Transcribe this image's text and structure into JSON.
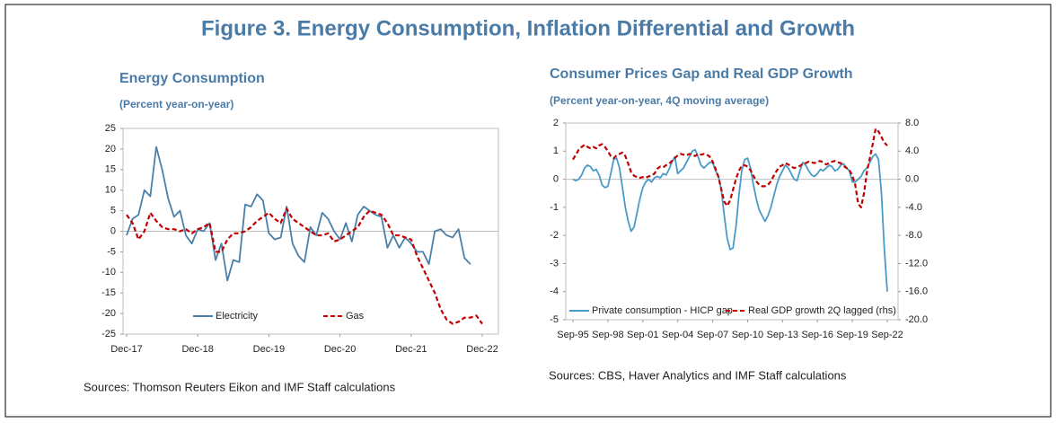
{
  "title": "Figure 3. Energy Consumption, Inflation Differential and Growth",
  "chart_data": [
    {
      "type": "line",
      "title": "Energy Consumption",
      "subtitle": "(Percent year-on-year)",
      "categories": [
        "Dec-17",
        null,
        null,
        null,
        null,
        null,
        null,
        null,
        null,
        null,
        null,
        null,
        "Dec-18",
        null,
        null,
        null,
        null,
        null,
        null,
        null,
        null,
        null,
        null,
        null,
        "Dec-19",
        null,
        null,
        null,
        null,
        null,
        null,
        null,
        null,
        null,
        null,
        null,
        "Dec-20",
        null,
        null,
        null,
        null,
        null,
        null,
        null,
        null,
        null,
        null,
        null,
        "Dec-21",
        null,
        null,
        null,
        null,
        null,
        null,
        null,
        null,
        null,
        null,
        null,
        "Dec-22"
      ],
      "series": [
        {
          "name": "Electricity",
          "color": "#4a7fa8",
          "dash": "solid",
          "values": [
            -1,
            3,
            4,
            10,
            8.5,
            20.5,
            15,
            8,
            3.5,
            5,
            -1,
            -3,
            0.5,
            0,
            2,
            -7,
            -3,
            -12,
            -7,
            -7.5,
            6.5,
            6,
            9,
            7.5,
            -0.5,
            -2,
            -1.5,
            6,
            -3,
            -6,
            -7.5,
            1,
            -1,
            4.5,
            3,
            0,
            -2,
            2,
            -2.5,
            4,
            6,
            5,
            4,
            3.5,
            -4,
            -1,
            -4,
            -1.5,
            -3,
            -5,
            -5,
            -8,
            0,
            0.5,
            -1,
            -1.5,
            0.5,
            -6.5,
            -8,
            null,
            null
          ]
        },
        {
          "name": "Gas",
          "color": "#c00000",
          "dash": "dashed",
          "values": [
            4,
            2,
            -2,
            0,
            4.5,
            2.5,
            1,
            0.5,
            0.5,
            0,
            0.5,
            -0.5,
            0.5,
            1,
            2,
            -5,
            -5,
            -2,
            -0.5,
            -0.5,
            0,
            1,
            2.5,
            3.5,
            4.5,
            3,
            2,
            5.5,
            3,
            2,
            1,
            0,
            -1,
            -1,
            -0.5,
            -2.5,
            -2,
            -1,
            0,
            1,
            3.5,
            5,
            4.5,
            4,
            2,
            -1,
            -1,
            -1.5,
            -2,
            -6,
            -9,
            -12,
            -15,
            -19,
            -21.5,
            -22.5,
            -22,
            -21,
            -21,
            -20.5,
            -22.5
          ]
        }
      ],
      "ylim": [
        -25,
        25
      ],
      "yticks": [
        25,
        20,
        15,
        10,
        5,
        0,
        -5,
        -10,
        -15,
        -20,
        -25
      ],
      "grid": false,
      "legend": "bottom",
      "source": "Sources: Thomson Reuters Eikon and IMF Staff calculations"
    },
    {
      "type": "line",
      "title": "Consumer Prices Gap and Real GDP Growth",
      "subtitle": "(Percent year-on-year, 4Q moving average)",
      "categories": [
        "Sep-95",
        null,
        null,
        null,
        null,
        null,
        null,
        null,
        null,
        null,
        null,
        null,
        "Sep-98",
        null,
        null,
        null,
        null,
        null,
        null,
        null,
        null,
        null,
        null,
        null,
        "Sep-01",
        null,
        null,
        null,
        null,
        null,
        null,
        null,
        null,
        null,
        null,
        null,
        "Sep-04",
        null,
        null,
        null,
        null,
        null,
        null,
        null,
        null,
        null,
        null,
        null,
        "Sep-07",
        null,
        null,
        null,
        null,
        null,
        null,
        null,
        null,
        null,
        null,
        null,
        "Sep-10",
        null,
        null,
        null,
        null,
        null,
        null,
        null,
        null,
        null,
        null,
        null,
        "Sep-13",
        null,
        null,
        null,
        null,
        null,
        null,
        null,
        null,
        null,
        null,
        null,
        "Sep-16",
        null,
        null,
        null,
        null,
        null,
        null,
        null,
        null,
        null,
        null,
        null,
        "Sep-19",
        null,
        null,
        null,
        null,
        null,
        null,
        null,
        null,
        null,
        null,
        null,
        "Sep-22"
      ],
      "series": [
        {
          "name": "Private consumption - HICP gap",
          "color": "#4a9bc8",
          "dash": "solid",
          "axis": "y",
          "values": [
            0,
            -0.05,
            0,
            0.15,
            0.4,
            0.5,
            0.45,
            0.3,
            0.35,
            0.15,
            -0.2,
            -0.3,
            -0.25,
            0.2,
            0.7,
            0.75,
            0.4,
            -0.3,
            -1.0,
            -1.5,
            -1.85,
            -1.7,
            -1.2,
            -0.7,
            -0.3,
            -0.1,
            0,
            -0.1,
            0.05,
            0.1,
            0.05,
            0.2,
            0.15,
            0.35,
            0.6,
            0.8,
            0.2,
            0.3,
            0.4,
            0.6,
            0.8,
            1.0,
            1.05,
            0.8,
            0.5,
            0.4,
            0.5,
            0.6,
            0.6,
            0.3,
            0.1,
            -0.4,
            -1.3,
            -2.1,
            -2.5,
            -2.45,
            -1.7,
            -0.6,
            0.3,
            0.7,
            0.75,
            0.4,
            -0.2,
            -0.7,
            -1.1,
            -1.3,
            -1.5,
            -1.3,
            -1.0,
            -0.6,
            -0.2,
            0.1,
            0.3,
            0.5,
            0.4,
            0.2,
            0.0,
            -0.05,
            0.3,
            0.6,
            0.5,
            0.3,
            0.15,
            0.1,
            0.2,
            0.35,
            0.3,
            0.4,
            0.5,
            0.45,
            0.3,
            0.35,
            0.5,
            0.55,
            0.4,
            0.3,
            -0.1,
            -0.1,
            0.0,
            0.1,
            0.3,
            0.4,
            0.6,
            0.8,
            0.9,
            0.7,
            -0.5,
            -2.5,
            -4.0
          ]
        },
        {
          "name": "Real GDP growth 2Q lagged (rhs)",
          "color": "#c00000",
          "dash": "dashed",
          "axis": "y2",
          "values": [
            2.8,
            3.5,
            4.2,
            4.6,
            4.9,
            4.6,
            4.4,
            4.6,
            4.4,
            4.8,
            5.0,
            4.6,
            4.0,
            3.3,
            3.0,
            3.4,
            3.6,
            3.8,
            3.3,
            2.2,
            1.0,
            0.5,
            0.3,
            0.2,
            0.3,
            0.2,
            0.4,
            0.5,
            0.8,
            1.5,
            1.8,
            1.7,
            2.0,
            2.2,
            2.6,
            3.0,
            3.4,
            3.6,
            3.5,
            3.4,
            3.6,
            3.5,
            3.3,
            3.6,
            3.5,
            3.6,
            3.5,
            3.2,
            2.5,
            1.5,
            0.3,
            -1.5,
            -3.2,
            -3.8,
            -3.0,
            -1.5,
            0.0,
            1.2,
            1.9,
            2.0,
            1.8,
            1.3,
            0.5,
            -0.3,
            -0.8,
            -1.0,
            -1.0,
            -0.8,
            -0.3,
            0.5,
            1.2,
            1.8,
            2.0,
            2.3,
            2.1,
            1.8,
            1.6,
            1.7,
            1.9,
            2.2,
            2.3,
            2.5,
            2.4,
            2.3,
            2.5,
            2.6,
            2.4,
            2.1,
            2.3,
            2.5,
            2.6,
            2.4,
            2.3,
            1.9,
            1.6,
            1.3,
            0.5,
            -0.8,
            -3.5,
            -4.0,
            -2.0,
            1.0,
            3.0,
            5.0,
            7.2,
            6.8,
            6.0,
            5.2,
            4.8
          ]
        }
      ],
      "ylim": [
        -5,
        2
      ],
      "yticks": [
        2,
        1,
        0,
        -1,
        -2,
        -3,
        -4,
        -5
      ],
      "y2lim": [
        -20,
        8
      ],
      "y2ticks": [
        {
          "value": 8,
          "label": "8.0"
        },
        {
          "value": 4,
          "label": "4.0"
        },
        {
          "value": 0,
          "label": "0.0"
        },
        {
          "value": -4,
          "label": "-4.0"
        },
        {
          "value": -8,
          "label": "-8.0"
        },
        {
          "value": -12,
          "label": "-12.0"
        },
        {
          "value": -16,
          "label": "-16.0"
        },
        {
          "value": -20,
          "label": "-20.0"
        }
      ],
      "grid": false,
      "legend": "bottom",
      "source": "Sources: CBS, Haver Analytics and IMF Staff calculations"
    }
  ]
}
